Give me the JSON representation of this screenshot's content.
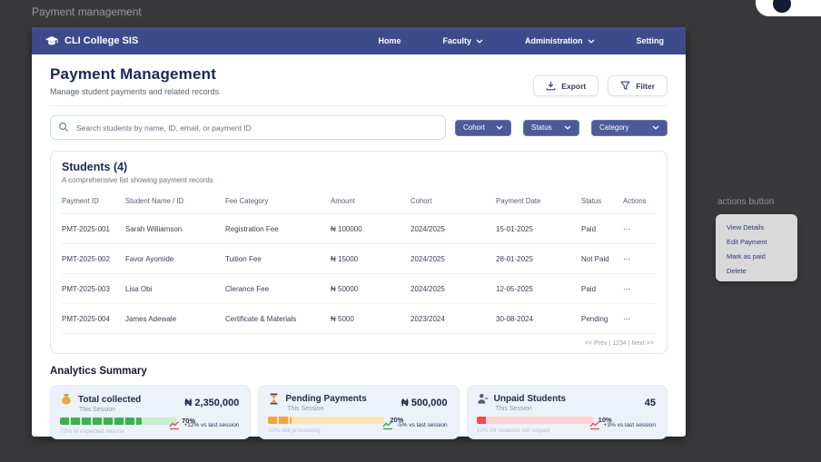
{
  "page": {
    "overlay_label": "Payment management"
  },
  "navbar": {
    "brand": "CLI College SIS",
    "items": [
      {
        "label": "Home",
        "has_dropdown": false
      },
      {
        "label": "Faculty",
        "has_dropdown": true
      },
      {
        "label": "Administration",
        "has_dropdown": true
      },
      {
        "label": "Setting",
        "has_dropdown": false
      }
    ]
  },
  "header": {
    "title": "Payment Management",
    "subtitle": "Manage student payments and related records",
    "export_button": "Export",
    "filter_button": "Filter"
  },
  "search": {
    "placeholder": "Search students by name, ID, email, or payment ID"
  },
  "filter_pills": [
    {
      "label": "Cohort"
    },
    {
      "label": "Status"
    },
    {
      "label": "Category"
    }
  ],
  "students": {
    "title": "Students (4)",
    "subtitle": "A comprehensive list showing payment records",
    "columns": [
      "Payment ID",
      "Student Name / ID",
      "Fee Category",
      "Amount",
      "Cohort",
      "Payment Date",
      "Status",
      "Actions"
    ],
    "rows": [
      {
        "payment_id": "PMT-2025-001",
        "student": "Sarah Williamson",
        "fee_category": "Registration Fee",
        "amount": "₦ 100000",
        "cohort": "2024/2025",
        "payment_date": "15-01-2025",
        "status": "Paid"
      },
      {
        "payment_id": "PMT-2025-002",
        "student": "Favor Ayomide",
        "fee_category": "Tuition Fee",
        "amount": "₦ 15000",
        "cohort": "2024/2025",
        "payment_date": "28-01-2025",
        "status": "Not Paid"
      },
      {
        "payment_id": "PMT-2025-003",
        "student": "Lisa Obi",
        "fee_category": "Clerance Fee",
        "amount": "₦ 50000",
        "cohort": "2024/2025",
        "payment_date": "12-05-2025",
        "status": "Paid"
      },
      {
        "payment_id": "PMT-2025-004",
        "student": "James Adewale",
        "fee_category": "Certificate & Materials",
        "amount": "₦ 5000",
        "cohort": "2023/2024",
        "payment_date": "30-08-2024",
        "status": "Pending"
      }
    ],
    "pagination": "<< Prev | 1234 | Next >>"
  },
  "actions_menu": {
    "annotation": "actions button",
    "items": [
      "View Details",
      "Edit Payment",
      "Mark as paid",
      "Delete"
    ]
  },
  "analytics": {
    "title": "Analytics Summary",
    "cards": [
      {
        "icon": "money-bag",
        "title": "Total collected",
        "period": "This Session",
        "progress_percent": 70,
        "percent_label": "70%",
        "footnote": "70% of expected returns",
        "value": "₦ 2,350,000",
        "trend": "+12% vs last session",
        "colors": {
          "fill": "#3fae55",
          "track": "#c6f0cd",
          "trend": "#e25563"
        }
      },
      {
        "icon": "hourglass",
        "title": "Pending Payments",
        "period": "This Session",
        "progress_percent": 20,
        "percent_label": "20%",
        "footnote": "20% still processing",
        "value": "₦ 500,000",
        "trend": "-5% vs last session",
        "colors": {
          "fill": "#f3a63c",
          "track": "#fde3b8",
          "trend": "#3aa35f"
        }
      },
      {
        "icon": "unpaid-student",
        "title": "Unpaid Students",
        "period": "This Session",
        "progress_percent": 10,
        "percent_label": "10%",
        "footnote": "10% Of students still unpaid",
        "value": "45",
        "trend": "+3% vs last session",
        "colors": {
          "fill": "#ee4b4f",
          "track": "#fdd3d3",
          "trend": "#e25563"
        }
      }
    ]
  },
  "icons": {
    "more_options": "⋯"
  },
  "theme": {
    "navbar": "#3e4b8b",
    "pill": "#4d5a9a",
    "heading": "#1c2757",
    "backdrop": "#39393b"
  }
}
